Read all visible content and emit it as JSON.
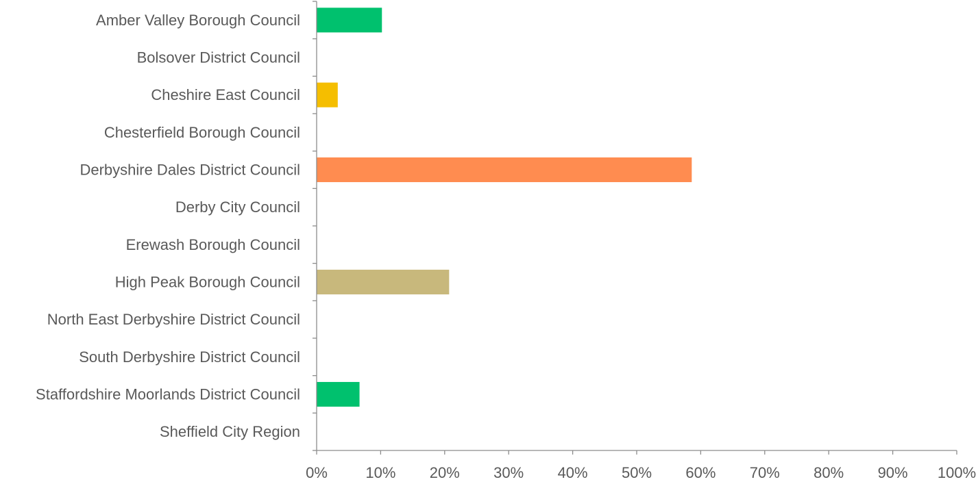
{
  "chart_data": {
    "type": "bar",
    "orientation": "horizontal",
    "categories": [
      "Amber Valley Borough Council",
      "Bolsover District Council",
      "Cheshire East Council",
      "Chesterfield Borough Council",
      "Derbyshire Dales District Council",
      "Derby City Council",
      "Erewash Borough Council",
      "High Peak Borough Council",
      "North East Derbyshire District Council",
      "South Derbyshire District Council",
      "Staffordshire Moorlands District Council",
      "Sheffield City Region"
    ],
    "values": [
      10.2,
      0,
      3.3,
      0,
      58.6,
      0,
      0,
      20.7,
      0,
      0,
      6.7,
      0
    ],
    "bar_colors": [
      "#00c16e",
      "#00c16e",
      "#f5be00",
      "#00c16e",
      "#ff8c50",
      "#00c16e",
      "#00c16e",
      "#c8b87c",
      "#00c16e",
      "#00c16e",
      "#00c16e",
      "#00c16e"
    ],
    "xlim": [
      0,
      100
    ],
    "x_ticks": [
      "0%",
      "10%",
      "20%",
      "30%",
      "40%",
      "50%",
      "60%",
      "70%",
      "80%",
      "90%",
      "100%"
    ],
    "grid": false,
    "legend": "none",
    "title": "",
    "xlabel": "",
    "ylabel": ""
  }
}
